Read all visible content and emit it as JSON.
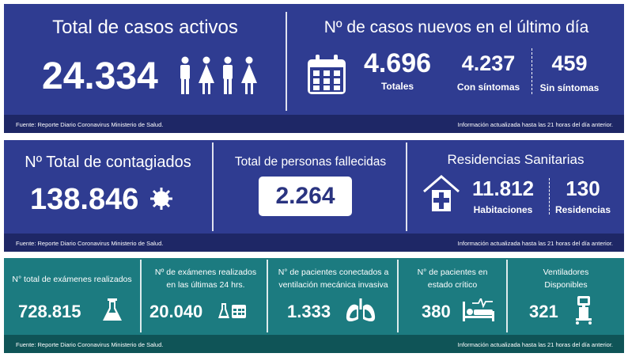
{
  "active": {
    "title": "Total de casos activos",
    "value": "24.334"
  },
  "new_cases": {
    "title": "Nº de casos nuevos en el último día",
    "total": {
      "value": "4.696",
      "label": "Totales"
    },
    "with_symptoms": {
      "value": "4.237",
      "label": "Con síntomas"
    },
    "without_symptoms": {
      "value": "459",
      "label": "Sin síntomas"
    }
  },
  "footer1": {
    "source": "Fuente: Reporte Diario Coronavirus Ministerio de Salud.",
    "updated": "Información actualizada hasta las 21 horas  del día anterior."
  },
  "infected": {
    "title": "Nº Total de contagiados",
    "value": "138.846"
  },
  "deceased": {
    "title": "Total de personas fallecidas",
    "value": "2.264"
  },
  "residences": {
    "title": "Residencias Sanitarias",
    "rooms": {
      "value": "11.812",
      "label": "Habitaciones"
    },
    "residences": {
      "value": "130",
      "label": "Residencias"
    }
  },
  "footer2": {
    "source": "Fuente: Reporte Diario Coronavirus Ministerio de Salud.",
    "updated": "Información actualizada hasta las 21 horas  del día anterior."
  },
  "exams": {
    "title_lines": [
      "N° total de exámenes realizados"
    ],
    "value": "728.815"
  },
  "exams_24h": {
    "title_lines": [
      "Nº de exámenes realizados",
      "en las últimas 24 hrs."
    ],
    "value": "20.040"
  },
  "ventilated": {
    "title_lines": [
      "N° de pacientes conectados a",
      "ventilación mecánica invasiva"
    ],
    "value": "1.333"
  },
  "critical": {
    "title_lines": [
      "N° de pacientes  en",
      "estado crítico"
    ],
    "value": "380"
  },
  "ventilators": {
    "title_lines": [
      "Ventiladores",
      "Disponibles"
    ],
    "value": "321"
  },
  "footer3": {
    "source": "Fuente: Reporte Diario Coronavirus Ministerio de Salud.",
    "updated": "Información actualizada hasta las 21 horas  del día anterior."
  }
}
